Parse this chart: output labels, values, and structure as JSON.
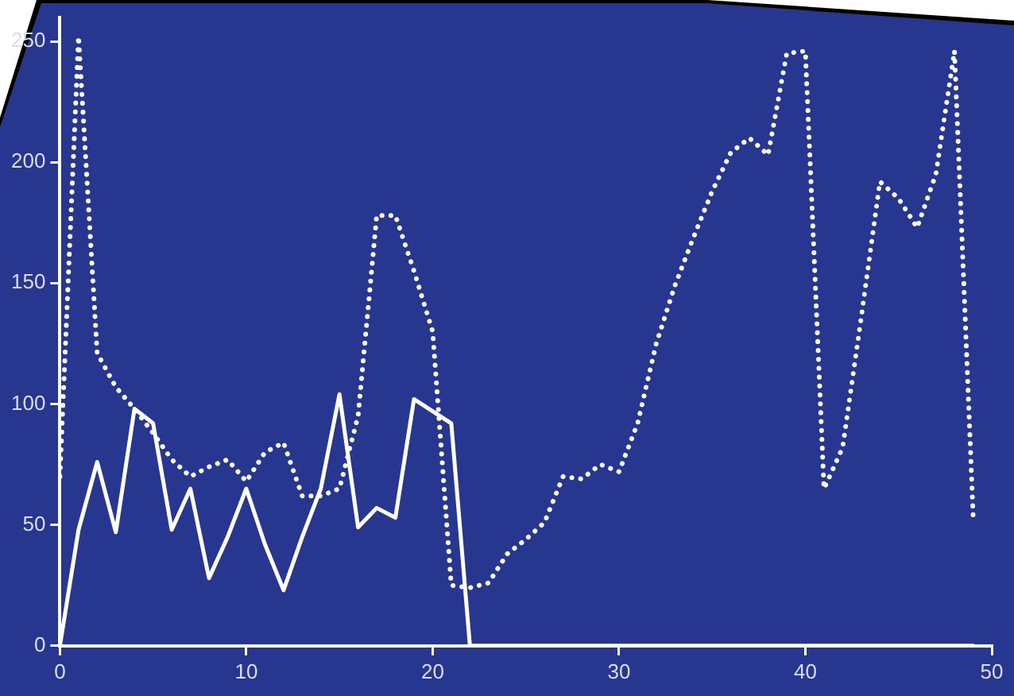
{
  "chart_data": {
    "type": "line",
    "x": [
      0,
      1,
      2,
      3,
      4,
      5,
      6,
      7,
      8,
      9,
      10,
      11,
      12,
      13,
      14,
      15,
      16,
      17,
      18,
      19,
      20,
      21,
      22,
      23,
      24,
      25,
      26,
      27,
      28,
      29,
      30,
      31,
      32,
      33,
      34,
      35,
      36,
      37,
      38,
      39,
      40,
      41,
      42,
      43,
      44,
      45,
      46,
      47,
      48,
      49
    ],
    "series": [
      {
        "color": "#ffffff",
        "line_style": "solid",
        "values": [
          0,
          48,
          76,
          47,
          98,
          92,
          48,
          65,
          28,
          45,
          65,
          42,
          23,
          45,
          65,
          104,
          49,
          57,
          53,
          102,
          97,
          92,
          0,
          0,
          0,
          0,
          0,
          0,
          0,
          0,
          0,
          0,
          0,
          0,
          0,
          0,
          0,
          0,
          0,
          0,
          0,
          0,
          0,
          0,
          0,
          0,
          0,
          0,
          0,
          0
        ]
      },
      {
        "color": "#ffffff",
        "line_style": "dotted",
        "values": [
          70,
          252,
          121,
          107,
          98,
          88,
          77,
          70,
          74,
          77,
          68,
          80,
          84,
          62,
          62,
          65,
          95,
          178,
          178,
          155,
          130,
          25,
          24,
          26,
          38,
          44,
          51,
          70,
          69,
          75,
          72,
          92,
          125,
          149,
          169,
          188,
          204,
          210,
          203,
          245,
          246,
          65,
          82,
          136,
          192,
          185,
          173,
          195,
          246,
          54
        ]
      }
    ],
    "xlim": [
      0,
      50
    ],
    "xticks": [
      0,
      10,
      20,
      30,
      40,
      50
    ],
    "ylim": [
      0,
      260
    ],
    "yticks": [
      0,
      50,
      100,
      150,
      200,
      250
    ],
    "grid": false,
    "legend": false,
    "marker": "none"
  }
}
